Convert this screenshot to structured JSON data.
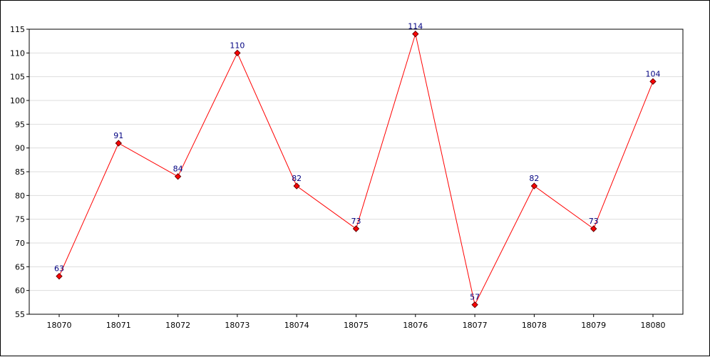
{
  "colors": {
    "line": "#ff0000",
    "marker_fill": "#ff0000",
    "marker_stroke": "#660000",
    "data_label": "#000080",
    "grid": "#dddddd",
    "axis": "#000000"
  },
  "chart_data": {
    "type": "line",
    "title": "",
    "xlabel": "",
    "ylabel": "",
    "x": [
      "18070",
      "18071",
      "18072",
      "18073",
      "18074",
      "18075",
      "18076",
      "18077",
      "18078",
      "18079",
      "18080"
    ],
    "series": [
      {
        "values": [
          63,
          91,
          84,
          110,
          82,
          73,
          114,
          57,
          82,
          73,
          104
        ],
        "markers": "diamond",
        "data_labels": true
      }
    ],
    "ylim": [
      55,
      115
    ],
    "yticks": [
      55,
      60,
      65,
      70,
      75,
      80,
      85,
      90,
      95,
      100,
      105,
      110,
      115
    ],
    "grid": "horizontal",
    "legend": "none"
  }
}
